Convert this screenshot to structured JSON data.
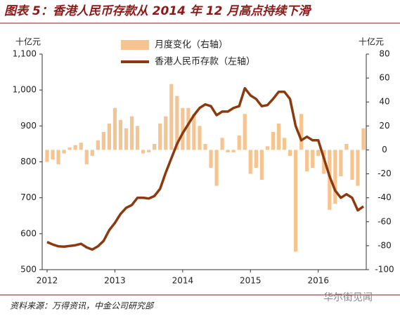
{
  "chart_data": {
    "type": "bar_line",
    "title": "图表 5：香港人民币存款从 2014 年 12 月高点持续下滑",
    "y_unit": "十亿元",
    "y2_unit": "十亿元",
    "source": "资料来源：万得资讯，中金公司研究部",
    "watermark": "华尔街见闻",
    "categories": [
      "2012",
      null,
      null,
      null,
      null,
      null,
      null,
      null,
      null,
      null,
      null,
      null,
      "2013",
      null,
      null,
      null,
      null,
      null,
      null,
      null,
      null,
      null,
      null,
      null,
      "2014",
      null,
      null,
      null,
      null,
      null,
      null,
      null,
      null,
      null,
      null,
      null,
      "2015",
      null,
      null,
      null,
      null,
      null,
      null,
      null,
      null,
      null,
      null,
      null,
      "2016",
      null,
      null,
      null,
      null,
      null,
      null,
      null,
      null
    ],
    "series": [
      {
        "name": "月度变化（右轴）",
        "color": "#f6c490",
        "axis": "y2",
        "kind": "bar",
        "values": [
          -10,
          -8,
          -12,
          -3,
          2,
          4,
          6,
          -12,
          -5,
          8,
          15,
          22,
          35,
          25,
          18,
          28,
          20,
          -3,
          -2,
          5,
          22,
          28,
          55,
          45,
          35,
          35,
          30,
          20,
          5,
          -15,
          -30,
          10,
          -2,
          -2,
          12,
          30,
          -20,
          -15,
          -25,
          3,
          15,
          22,
          10,
          -5,
          -85,
          30,
          -18,
          -15,
          -5,
          -20,
          -50,
          -45,
          -22,
          5,
          -25,
          -30,
          18
        ]
      },
      {
        "name": "香港人民币存款（左轴）",
        "color": "#8b3a0f",
        "axis": "y",
        "kind": "line",
        "values": [
          577,
          570,
          565,
          564,
          566,
          568,
          572,
          562,
          556,
          565,
          580,
          610,
          630,
          655,
          672,
          680,
          700,
          700,
          698,
          705,
          725,
          770,
          810,
          850,
          880,
          905,
          930,
          950,
          960,
          955,
          930,
          940,
          940,
          950,
          955,
          1005,
          985,
          975,
          955,
          958,
          975,
          995,
          995,
          975,
          900,
          860,
          870,
          860,
          860,
          810,
          760,
          720,
          700,
          710,
          700,
          665,
          676
        ]
      }
    ],
    "ylim": [
      500,
      1100
    ],
    "yticks": [
      500,
      600,
      700,
      800,
      900,
      {
        "value": 1000,
        "label": "1,000"
      },
      {
        "value": 1100,
        "label": "1,100"
      }
    ],
    "y2lim": [
      -100,
      80
    ],
    "y2ticks": [
      -100,
      -80,
      -60,
      -40,
      -20,
      0,
      20,
      40,
      60,
      80
    ]
  }
}
